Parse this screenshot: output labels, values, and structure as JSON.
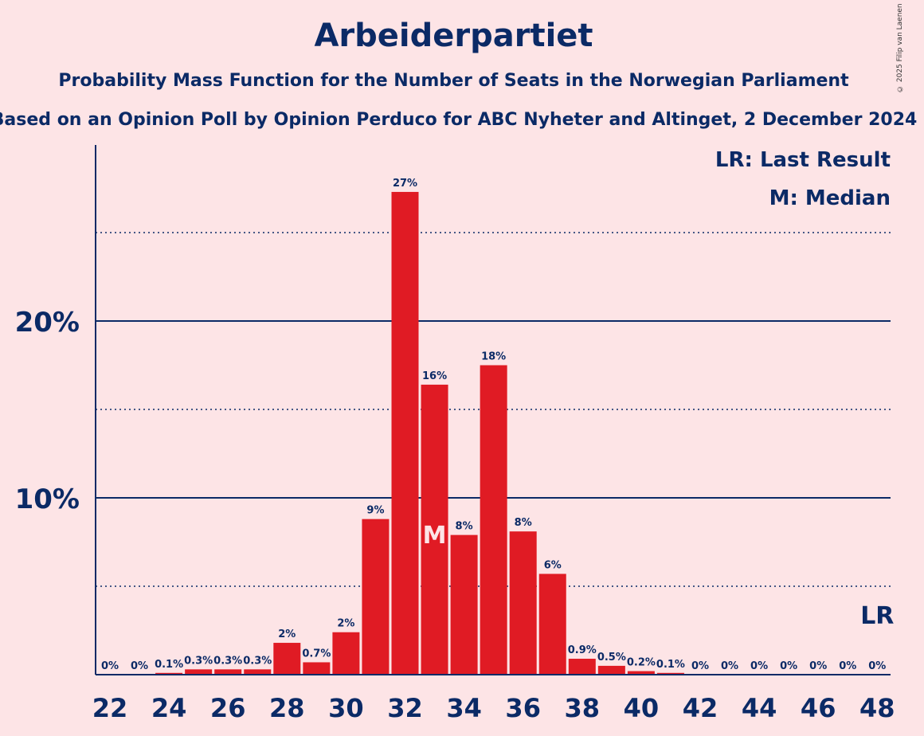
{
  "title": "Arbeiderpartiet",
  "subtitle": "Probability Mass Function for the Number of Seats in the Norwegian Parliament",
  "subtitle2": "Based on an Opinion Poll by Opinion Perduco for ABC Nyheter and Altinget, 2 December 2024",
  "copyright": "© 2025 Filip van Laenen",
  "legend": {
    "last_result": "LR: Last Result",
    "median": "M: Median"
  },
  "colors": {
    "bar": "#e01b24",
    "text": "#0b2a66",
    "background": "#fde4e6"
  },
  "chart_data": {
    "type": "bar",
    "x": [
      22,
      23,
      24,
      25,
      26,
      27,
      28,
      29,
      30,
      31,
      32,
      33,
      34,
      35,
      36,
      37,
      38,
      39,
      40,
      41,
      42,
      43,
      44,
      45,
      46,
      47,
      48
    ],
    "values": [
      0,
      0,
      0.1,
      0.3,
      0.3,
      0.3,
      1.8,
      0.7,
      2.4,
      8.8,
      27.3,
      16.4,
      7.9,
      17.5,
      8.1,
      5.7,
      0.9,
      0.5,
      0.2,
      0.1,
      0,
      0,
      0,
      0,
      0,
      0,
      0
    ],
    "value_labels": [
      "0%",
      "0%",
      "0.1%",
      "0.3%",
      "0.3%",
      "0.3%",
      "2%",
      "0.7%",
      "2%",
      "9%",
      "27%",
      "16%",
      "8%",
      "18%",
      "8%",
      "6%",
      "0.9%",
      "0.5%",
      "0.2%",
      "0.1%",
      "0%",
      "0%",
      "0%",
      "0%",
      "0%",
      "0%",
      "0%"
    ],
    "x_tick_labels": [
      "22",
      "24",
      "26",
      "28",
      "30",
      "32",
      "34",
      "36",
      "38",
      "40",
      "42",
      "44",
      "46",
      "48"
    ],
    "y_ticks": [
      {
        "value": 10,
        "label": "10%"
      },
      {
        "value": 20,
        "label": "20%"
      }
    ],
    "y_minor_gridlines": [
      5,
      15,
      25
    ],
    "ylim": [
      0,
      30
    ],
    "median": 33,
    "median_label": "M",
    "last_result": 48,
    "last_result_label": "LR"
  }
}
